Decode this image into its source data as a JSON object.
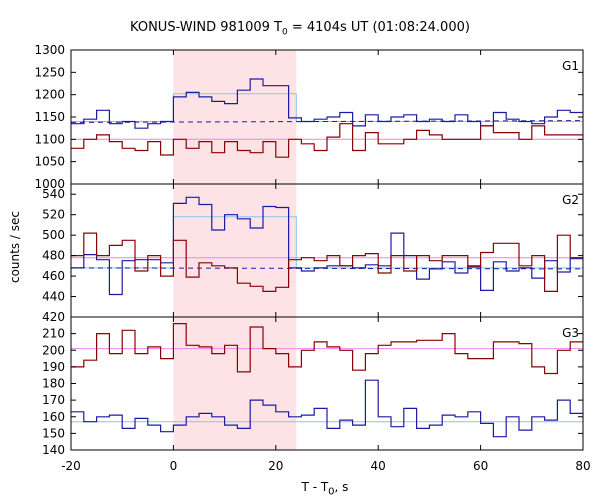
{
  "title": {
    "prefix": "KONUS-WIND 981009 T",
    "sub": "0",
    "suffix": " = 4104s UT (01:08:24.000)"
  },
  "ylabel": "counts / sec",
  "xlabel": {
    "prefix": "T - T",
    "sub": "0",
    "suffix": ", s"
  },
  "colors": {
    "red": "#8b0000",
    "blue": "#1a1aa6",
    "cyan": "#7fc8ee",
    "pink": "#ee82ee",
    "shade": "#fde3e5"
  },
  "chart_data": {
    "type": "line",
    "step": true,
    "xlim": [
      -20,
      80
    ],
    "x_ticks": [
      "-20",
      "0",
      "20",
      "40",
      "60",
      "80"
    ],
    "shaded_interval": [
      0,
      24
    ],
    "panels": [
      {
        "name": "G1",
        "ylim": [
          1000,
          1300
        ],
        "y_ticks": [
          "1000",
          "1050",
          "1100",
          "1150",
          "1200",
          "1250",
          "1300"
        ],
        "bin_edges": [
          -20,
          -17.5,
          -15,
          -12.5,
          -10,
          -7.5,
          -5,
          -2.5,
          0,
          2.5,
          5,
          7.5,
          10,
          12.5,
          15,
          17.5,
          20,
          22.5,
          25,
          27.5,
          30,
          32.5,
          35,
          37.5,
          40,
          42.5,
          45,
          47.5,
          50,
          52.5,
          55,
          57.5,
          60,
          62.5,
          65,
          67.5,
          70,
          72.5,
          75,
          77.5,
          80
        ],
        "series": [
          {
            "color": "blue",
            "values": [
              1135,
              1145,
              1165,
              1135,
              1140,
              1125,
              1135,
              1140,
              1195,
              1205,
              1195,
              1185,
              1180,
              1210,
              1235,
              1220,
              1220,
              1148,
              1140,
              1145,
              1150,
              1160,
              1130,
              1155,
              1140,
              1150,
              1155,
              1140,
              1145,
              1140,
              1155,
              1140,
              1130,
              1160,
              1145,
              1140,
              1135,
              1150,
              1165,
              1160
            ]
          },
          {
            "color": "red",
            "values": [
              1080,
              1100,
              1110,
              1095,
              1080,
              1075,
              1095,
              1065,
              1100,
              1080,
              1095,
              1070,
              1095,
              1075,
              1070,
              1095,
              1060,
              1100,
              1090,
              1075,
              1105,
              1135,
              1075,
              1115,
              1090,
              1090,
              1100,
              1120,
              1110,
              1100,
              1100,
              1100,
              1130,
              1115,
              1115,
              1100,
              1130,
              1110,
              1110,
              1110
            ]
          }
        ],
        "fits": [
          {
            "color": "cyan",
            "x": [
              -20,
              0,
              0,
              24,
              24,
              80
            ],
            "y": [
              1140,
              1140,
              1202,
              1202,
              1140,
              1140
            ]
          },
          {
            "color": "blue",
            "dashed": true,
            "x": [
              -20,
              80
            ],
            "y": [
              1138,
              1142
            ]
          },
          {
            "color": "pink",
            "x": [
              -20,
              80
            ],
            "y": [
              1100,
              1100
            ]
          }
        ]
      },
      {
        "name": "G2",
        "ylim": [
          420,
          550
        ],
        "y_ticks": [
          "420",
          "440",
          "460",
          "480",
          "500",
          "520",
          "540"
        ],
        "bin_edges": [
          -20,
          -17.5,
          -15,
          -12.5,
          -10,
          -7.5,
          -5,
          -2.5,
          0,
          2.5,
          5,
          7.5,
          10,
          12.5,
          15,
          17.5,
          20,
          22.5,
          25,
          27.5,
          30,
          32.5,
          35,
          37.5,
          40,
          42.5,
          45,
          47.5,
          50,
          52.5,
          55,
          57.5,
          60,
          62.5,
          65,
          67.5,
          70,
          72.5,
          75,
          77.5,
          80
        ],
        "series": [
          {
            "color": "blue",
            "values": [
              468,
              481,
              476,
              442,
              475,
              476,
              476,
              473,
              531,
              537,
              530,
              505,
              520,
              516,
              507,
              528,
              527,
              468,
              465,
              468,
              470,
              470,
              468,
              471,
              470,
              502,
              480,
              457,
              467,
              474,
              463,
              470,
              446,
              474,
              465,
              468,
              458,
              475,
              464,
              477
            ]
          },
          {
            "color": "red",
            "values": [
              480,
              502,
              480,
              490,
              495,
              465,
              480,
              460,
              495,
              459,
              473,
              470,
              468,
              453,
              450,
              445,
              449,
              476,
              478,
              475,
              480,
              470,
              480,
              482,
              463,
              480,
              465,
              480,
              475,
              480,
              480,
              469,
              483,
              492,
              492,
              470,
              480,
              445,
              500,
              478
            ]
          }
        ],
        "fits": [
          {
            "color": "cyan",
            "x": [
              -20,
              0,
              0,
              24,
              24,
              80
            ],
            "y": [
              468,
              468,
              518,
              518,
              468,
              468
            ]
          },
          {
            "color": "blue",
            "dashed": true,
            "x": [
              -20,
              80
            ],
            "y": [
              468,
              467
            ]
          },
          {
            "color": "pink",
            "x": [
              -20,
              80
            ],
            "y": [
              478,
              478
            ]
          }
        ]
      },
      {
        "name": "G3",
        "ylim": [
          140,
          220
        ],
        "y_ticks": [
          "140",
          "150",
          "160",
          "170",
          "180",
          "190",
          "200",
          "210",
          "220"
        ],
        "bin_edges": [
          -20,
          -17.5,
          -15,
          -12.5,
          -10,
          -7.5,
          -5,
          -2.5,
          0,
          2.5,
          5,
          7.5,
          10,
          12.5,
          15,
          17.5,
          20,
          22.5,
          25,
          27.5,
          30,
          32.5,
          35,
          37.5,
          40,
          42.5,
          45,
          47.5,
          50,
          52.5,
          55,
          57.5,
          60,
          62.5,
          65,
          67.5,
          70,
          72.5,
          75,
          77.5,
          80
        ],
        "series": [
          {
            "color": "blue",
            "values": [
              163,
              157,
              160,
              161,
              153,
              159,
              155,
              151,
              155,
              160,
              162,
              160,
              155,
              153,
              170,
              167,
              163,
              160,
              161,
              165,
              153,
              158,
              155,
              182,
              160,
              154,
              165,
              153,
              155,
              161,
              160,
              163,
              156,
              148,
              160,
              152,
              160,
              158,
              170,
              162
            ]
          },
          {
            "color": "red",
            "values": [
              190,
              194,
              210,
              198,
              212,
              198,
              202,
              195,
              216,
              203,
              202,
              198,
              203,
              187,
              214,
              201,
              198,
              190,
              200,
              205,
              202,
              200,
              188,
              198,
              203,
              205,
              205,
              206,
              206,
              210,
              198,
              195,
              195,
              205,
              205,
              204,
              190,
              186,
              200,
              205
            ]
          }
        ],
        "fits": [
          {
            "color": "cyan",
            "x": [
              -20,
              80
            ],
            "y": [
              157,
              157
            ]
          },
          {
            "color": "pink",
            "x": [
              -20,
              80
            ],
            "y": [
              201,
              201
            ]
          }
        ]
      }
    ]
  }
}
